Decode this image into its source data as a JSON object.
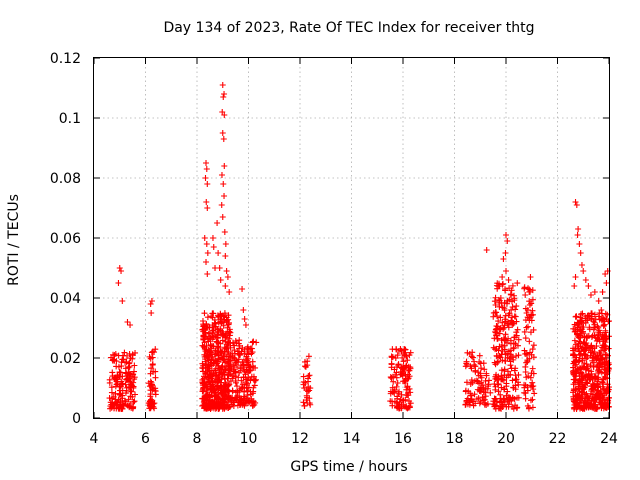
{
  "chart_data": {
    "type": "scatter",
    "title": "Day 134 of 2023, Rate Of TEC Index for receiver thtg",
    "xlabel": "GPS time / hours",
    "ylabel": "ROTI / TECUs",
    "xlim": [
      4,
      24
    ],
    "ylim": [
      0,
      0.12
    ],
    "xticks": [
      "4",
      "6",
      "8",
      "10",
      "12",
      "14",
      "16",
      "18",
      "20",
      "22",
      "24"
    ],
    "yticks": [
      "0",
      "0.02",
      "0.04",
      "0.06",
      "0.08",
      "0.1",
      "0.12"
    ],
    "grid": true,
    "marker": "+",
    "color": "#ff0000",
    "clusters": [
      {
        "x_range": [
          4.6,
          5.6
        ],
        "y_range": [
          0.003,
          0.022
        ],
        "count": 160
      },
      {
        "x_range": [
          6.1,
          6.4
        ],
        "y_range": [
          0.003,
          0.023
        ],
        "count": 50
      },
      {
        "x_range": [
          8.2,
          9.3
        ],
        "y_range": [
          0.003,
          0.035
        ],
        "count": 520
      },
      {
        "x_range": [
          9.3,
          10.3
        ],
        "y_range": [
          0.004,
          0.026
        ],
        "count": 180
      },
      {
        "x_range": [
          12.1,
          12.4
        ],
        "y_range": [
          0.004,
          0.021
        ],
        "count": 30
      },
      {
        "x_range": [
          15.5,
          16.3
        ],
        "y_range": [
          0.003,
          0.023
        ],
        "count": 120
      },
      {
        "x_range": [
          18.4,
          19.4
        ],
        "y_range": [
          0.004,
          0.022
        ],
        "count": 90
      },
      {
        "x_range": [
          19.5,
          20.5
        ],
        "y_range": [
          0.003,
          0.045
        ],
        "count": 240
      },
      {
        "x_range": [
          20.7,
          21.1
        ],
        "y_range": [
          0.003,
          0.045
        ],
        "count": 70
      },
      {
        "x_range": [
          22.6,
          24.0
        ],
        "y_range": [
          0.003,
          0.035
        ],
        "count": 560
      }
    ],
    "outliers": [
      {
        "x": 5.0,
        "y": 0.05
      },
      {
        "x": 5.05,
        "y": 0.049
      },
      {
        "x": 4.95,
        "y": 0.045
      },
      {
        "x": 5.1,
        "y": 0.039
      },
      {
        "x": 5.3,
        "y": 0.032
      },
      {
        "x": 5.4,
        "y": 0.031
      },
      {
        "x": 6.25,
        "y": 0.039
      },
      {
        "x": 6.2,
        "y": 0.038
      },
      {
        "x": 6.22,
        "y": 0.035
      },
      {
        "x": 8.35,
        "y": 0.085
      },
      {
        "x": 8.38,
        "y": 0.083
      },
      {
        "x": 8.33,
        "y": 0.08
      },
      {
        "x": 8.4,
        "y": 0.078
      },
      {
        "x": 8.36,
        "y": 0.072
      },
      {
        "x": 8.4,
        "y": 0.07
      },
      {
        "x": 8.3,
        "y": 0.06
      },
      {
        "x": 8.38,
        "y": 0.058
      },
      {
        "x": 8.42,
        "y": 0.055
      },
      {
        "x": 8.35,
        "y": 0.052
      },
      {
        "x": 8.4,
        "y": 0.048
      },
      {
        "x": 8.62,
        "y": 0.06
      },
      {
        "x": 8.65,
        "y": 0.057
      },
      {
        "x": 8.7,
        "y": 0.05
      },
      {
        "x": 8.78,
        "y": 0.065
      },
      {
        "x": 8.82,
        "y": 0.055
      },
      {
        "x": 8.88,
        "y": 0.05
      },
      {
        "x": 8.92,
        "y": 0.046
      },
      {
        "x": 9.0,
        "y": 0.111
      },
      {
        "x": 9.02,
        "y": 0.107
      },
      {
        "x": 8.98,
        "y": 0.102
      },
      {
        "x": 9.05,
        "y": 0.108
      },
      {
        "x": 9.06,
        "y": 0.101
      },
      {
        "x": 9.0,
        "y": 0.095
      },
      {
        "x": 9.04,
        "y": 0.093
      },
      {
        "x": 9.06,
        "y": 0.084
      },
      {
        "x": 8.97,
        "y": 0.081
      },
      {
        "x": 9.02,
        "y": 0.078
      },
      {
        "x": 9.05,
        "y": 0.074
      },
      {
        "x": 8.96,
        "y": 0.071
      },
      {
        "x": 9.0,
        "y": 0.067
      },
      {
        "x": 9.08,
        "y": 0.062
      },
      {
        "x": 9.12,
        "y": 0.058
      },
      {
        "x": 9.1,
        "y": 0.054
      },
      {
        "x": 9.15,
        "y": 0.049
      },
      {
        "x": 9.2,
        "y": 0.047
      },
      {
        "x": 9.1,
        "y": 0.044
      },
      {
        "x": 9.25,
        "y": 0.042
      },
      {
        "x": 9.75,
        "y": 0.043
      },
      {
        "x": 9.8,
        "y": 0.036
      },
      {
        "x": 9.85,
        "y": 0.033
      },
      {
        "x": 9.9,
        "y": 0.031
      },
      {
        "x": 15.9,
        "y": 0.023
      },
      {
        "x": 16.05,
        "y": 0.023
      },
      {
        "x": 19.25,
        "y": 0.056
      },
      {
        "x": 20.0,
        "y": 0.061
      },
      {
        "x": 20.05,
        "y": 0.059
      },
      {
        "x": 19.98,
        "y": 0.055
      },
      {
        "x": 19.9,
        "y": 0.053
      },
      {
        "x": 20.0,
        "y": 0.049
      },
      {
        "x": 19.85,
        "y": 0.047
      },
      {
        "x": 19.75,
        "y": 0.044
      },
      {
        "x": 20.1,
        "y": 0.046
      },
      {
        "x": 19.8,
        "y": 0.04
      },
      {
        "x": 20.95,
        "y": 0.047
      },
      {
        "x": 20.9,
        "y": 0.042
      },
      {
        "x": 20.85,
        "y": 0.036
      },
      {
        "x": 20.8,
        "y": 0.035
      },
      {
        "x": 22.7,
        "y": 0.072
      },
      {
        "x": 22.75,
        "y": 0.071
      },
      {
        "x": 22.8,
        "y": 0.063
      },
      {
        "x": 22.78,
        "y": 0.061
      },
      {
        "x": 22.85,
        "y": 0.058
      },
      {
        "x": 22.9,
        "y": 0.055
      },
      {
        "x": 22.95,
        "y": 0.051
      },
      {
        "x": 22.7,
        "y": 0.047
      },
      {
        "x": 22.65,
        "y": 0.044
      },
      {
        "x": 23.0,
        "y": 0.049
      },
      {
        "x": 23.1,
        "y": 0.046
      },
      {
        "x": 23.2,
        "y": 0.044
      },
      {
        "x": 23.3,
        "y": 0.041
      },
      {
        "x": 23.45,
        "y": 0.042
      },
      {
        "x": 23.6,
        "y": 0.039
      },
      {
        "x": 23.75,
        "y": 0.042
      },
      {
        "x": 23.85,
        "y": 0.048
      },
      {
        "x": 23.95,
        "y": 0.049
      },
      {
        "x": 23.9,
        "y": 0.045
      },
      {
        "x": 23.7,
        "y": 0.036
      },
      {
        "x": 23.9,
        "y": 0.033
      }
    ]
  }
}
